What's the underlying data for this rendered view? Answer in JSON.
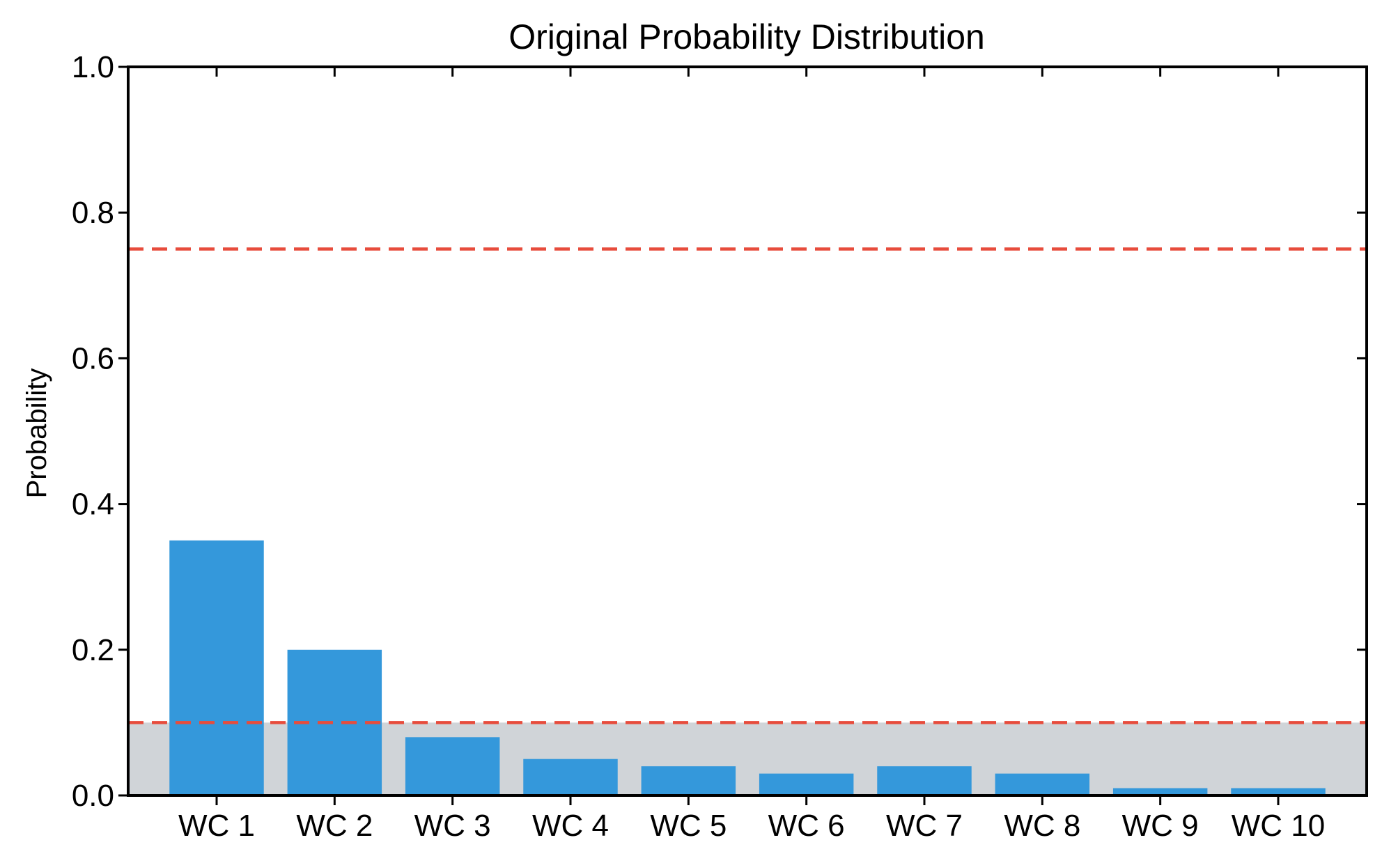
{
  "chart_data": {
    "type": "bar",
    "title": "Original Probability Distribution",
    "xlabel": "",
    "ylabel": "Probability",
    "categories": [
      "WC 1",
      "WC 2",
      "WC 3",
      "WC 4",
      "WC 5",
      "WC 6",
      "WC 7",
      "WC 8",
      "WC 9",
      "WC 10"
    ],
    "values": [
      0.35,
      0.2,
      0.08,
      0.05,
      0.04,
      0.03,
      0.04,
      0.03,
      0.01,
      0.01
    ],
    "ylim": [
      0,
      1.0
    ],
    "yticks": [
      0.0,
      0.2,
      0.4,
      0.6,
      0.8,
      1.0
    ],
    "ytick_labels": [
      "0.0",
      "0.2",
      "0.4",
      "0.6",
      "0.8",
      "1.0"
    ],
    "reference_lines": [
      0.75,
      0.1
    ],
    "shaded_band": [
      0,
      0.1
    ],
    "grid": false,
    "colors": {
      "bar": "#3498db",
      "reference_line": "#e74c3c",
      "shaded_band": "#d0d4d8",
      "axis": "#000000"
    }
  }
}
